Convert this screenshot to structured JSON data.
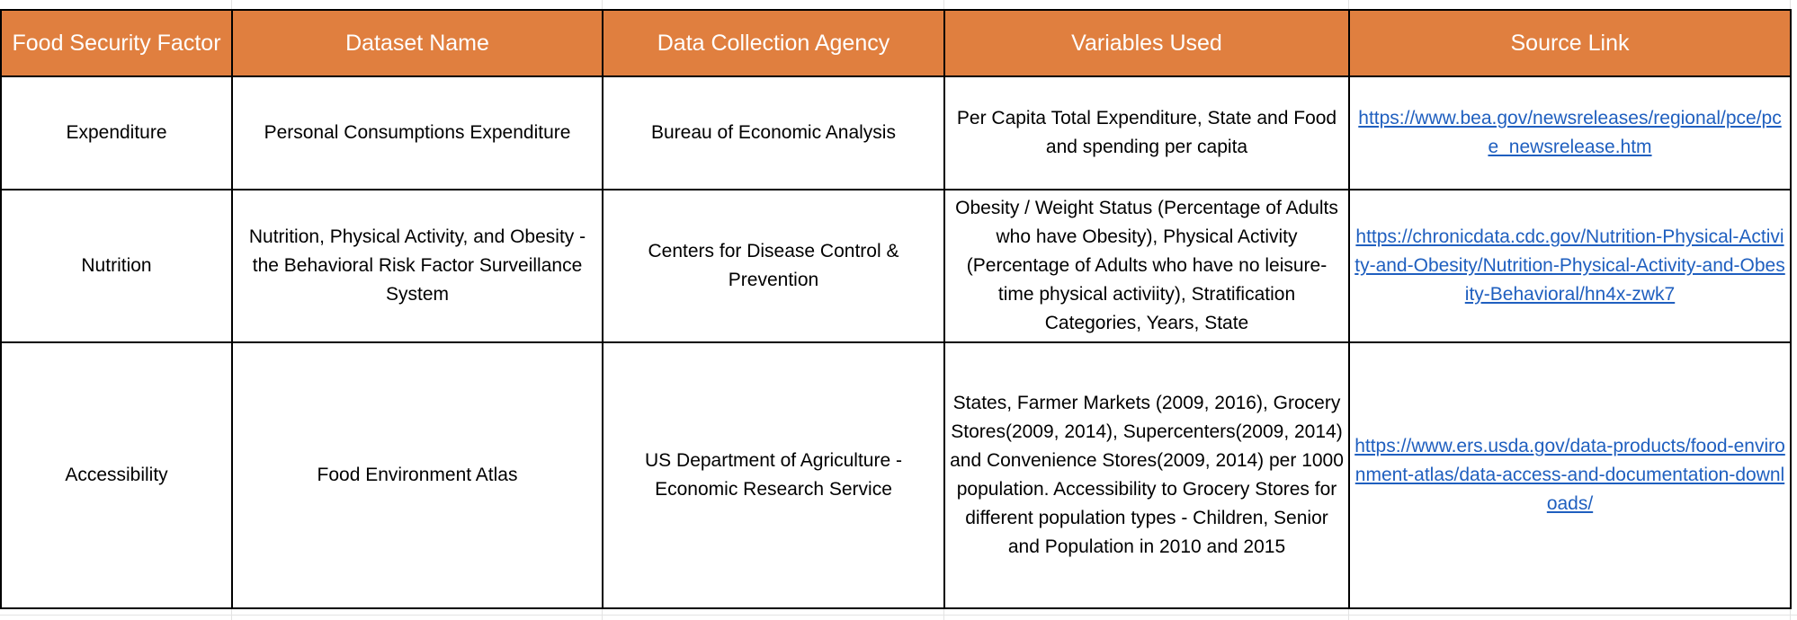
{
  "table": {
    "headers": [
      "Food Security Factor",
      "Dataset Name",
      "Data Collection Agency",
      "Variables Used",
      "Source Link"
    ],
    "header_color": "#e07f3f",
    "link_color": "#1f5fbf",
    "rows": [
      {
        "factor": "Expenditure",
        "dataset": "Personal Consumptions Expenditure",
        "agency": "Bureau of Economic Analysis",
        "variables": "Per Capita Total Expenditure, State and Food and spending per capita",
        "source": "https://www.bea.gov/newsreleases/regional/pce/pce_newsrelease.htm"
      },
      {
        "factor": "Nutrition",
        "dataset": "Nutrition, Physical Activity, and Obesity - the Behavioral Risk Factor Surveillance System",
        "agency": "Centers for Disease Control & Prevention",
        "variables": "Obesity / Weight Status (Percentage of Adults who have Obesity), Physical Activity (Percentage of Adults who have no leisure-time physical activiity), Stratification Categories, Years, State",
        "source": "https://chronicdata.cdc.gov/Nutrition-Physical-Activity-and-Obesity/Nutrition-Physical-Activity-and-Obesity-Behavioral/hn4x-zwk7"
      },
      {
        "factor": "Accessibility",
        "dataset": "Food Environment Atlas",
        "agency": "US Department of Agriculture - Economic Research Service",
        "variables": "States, Farmer Markets (2009, 2016), Grocery Stores(2009, 2014), Supercenters(2009, 2014) and Convenience Stores(2009, 2014) per 1000 population. Accessibility to Grocery Stores for different population types - Children, Senior and Population in 2010 and 2015",
        "source": "https://www.ers.usda.gov/data-products/food-environment-atlas/data-access-and-documentation-downloads/"
      }
    ]
  }
}
